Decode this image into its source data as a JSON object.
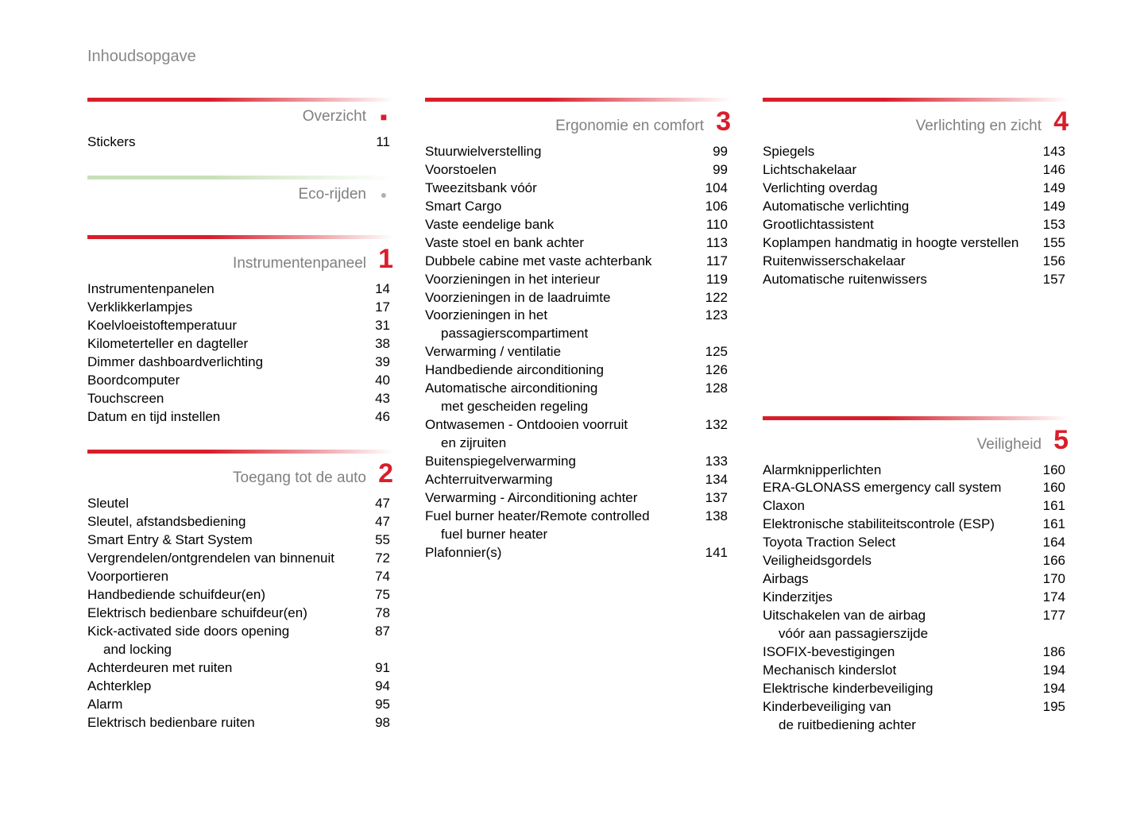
{
  "page_title": "Inhoudsopgave",
  "colors": {
    "accent_red": "#d81e2a",
    "title_gray": "#808080",
    "header_gray": "#888888",
    "text_black": "#000000",
    "green_bar": "#c8e0b8"
  },
  "columns": [
    {
      "sections": [
        {
          "bar_style": "red",
          "title": "Overzicht",
          "marker": "red-dot",
          "number": "",
          "items": [
            {
              "label": "Stickers",
              "page": "11"
            }
          ]
        },
        {
          "bar_style": "green",
          "title": "Eco-rijden",
          "marker": "gray-dot",
          "number": "",
          "items": []
        },
        {
          "bar_style": "red",
          "title": "Instrumentenpaneel",
          "marker": "number",
          "number": "1",
          "items": [
            {
              "label": "Instrumentenpanelen",
              "page": "14"
            },
            {
              "label": "Verklikkerlampjes",
              "page": "17"
            },
            {
              "label": "Koelvloeistoftemperatuur",
              "page": "31"
            },
            {
              "label": "Kilometerteller en dagteller",
              "page": "38"
            },
            {
              "label": "Dimmer dashboardverlichting",
              "page": "39"
            },
            {
              "label": "Boordcomputer",
              "page": "40"
            },
            {
              "label": "Touchscreen",
              "page": "43"
            },
            {
              "label": "Datum en tijd instellen",
              "page": "46"
            }
          ]
        },
        {
          "bar_style": "red",
          "title": "Toegang tot de auto",
          "marker": "number",
          "number": "2",
          "items": [
            {
              "label": "Sleutel",
              "page": "47"
            },
            {
              "label": "Sleutel, afstandsbediening",
              "page": "47"
            },
            {
              "label": "Smart Entry & Start System",
              "page": "55"
            },
            {
              "label": "Vergrendelen/ontgrendelen van binnenuit",
              "page": "72"
            },
            {
              "label": "Voorportieren",
              "page": "74"
            },
            {
              "label": "Handbediende schuifdeur(en)",
              "page": "75"
            },
            {
              "label": "Elektrisch bedienbare schuifdeur(en)",
              "page": "78"
            },
            {
              "label": "Kick-activated side doors opening",
              "label2": "and locking",
              "page": "87"
            },
            {
              "label": "Achterdeuren met ruiten",
              "page": "91"
            },
            {
              "label": "Achterklep",
              "page": "94"
            },
            {
              "label": "Alarm",
              "page": "95"
            },
            {
              "label": "Elektrisch bedienbare ruiten",
              "page": "98"
            }
          ]
        }
      ]
    },
    {
      "sections": [
        {
          "bar_style": "red",
          "title": "Ergonomie en comfort",
          "marker": "number",
          "number": "3",
          "items": [
            {
              "label": "Stuurwielverstelling",
              "page": "99"
            },
            {
              "label": "Voorstoelen",
              "page": "99"
            },
            {
              "label": "Tweezitsbank vóór",
              "page": "104"
            },
            {
              "label": "Smart Cargo",
              "page": "106"
            },
            {
              "label": "Vaste eendelige bank",
              "page": "110"
            },
            {
              "label": "Vaste stoel en bank achter",
              "page": "113"
            },
            {
              "label": "Dubbele cabine met vaste achterbank",
              "page": "117"
            },
            {
              "label": "Voorzieningen in het interieur",
              "page": "119"
            },
            {
              "label": "Voorzieningen in de laadruimte",
              "page": "122"
            },
            {
              "label": "Voorzieningen in het",
              "label2": "passagierscompartiment",
              "page": "123"
            },
            {
              "label": "Verwarming / ventilatie",
              "page": "125"
            },
            {
              "label": "Handbediende airconditioning",
              "page": "126"
            },
            {
              "label": "Automatische airconditioning",
              "label2": "met gescheiden regeling",
              "page": "128"
            },
            {
              "label": "Ontwasemen - Ontdooien voorruit",
              "label2": "en zijruiten",
              "page": "132"
            },
            {
              "label": "Buitenspiegelverwarming",
              "page": "133"
            },
            {
              "label": "Achterruitverwarming",
              "page": "134"
            },
            {
              "label": "Verwarming - Airconditioning achter",
              "page": "137"
            },
            {
              "label": "Fuel burner heater/Remote controlled",
              "label2": "fuel burner heater",
              "page": "138"
            },
            {
              "label": "Plafonnier(s)",
              "page": "141"
            }
          ]
        }
      ]
    },
    {
      "sections": [
        {
          "bar_style": "red",
          "title": "Verlichting en zicht",
          "marker": "number",
          "number": "4",
          "items": [
            {
              "label": "Spiegels",
              "page": "143"
            },
            {
              "label": "Lichtschakelaar",
              "page": "146"
            },
            {
              "label": "Verlichting overdag",
              "page": "149"
            },
            {
              "label": "Automatische verlichting",
              "page": "149"
            },
            {
              "label": "Grootlichtassistent",
              "page": "153"
            },
            {
              "label": "Koplampen handmatig in hoogte verstellen",
              "page": "155"
            },
            {
              "label": "Ruitenwisserschakelaar",
              "page": "156"
            },
            {
              "label": "Automatische ruitenwissers",
              "page": "157"
            }
          ]
        },
        {
          "bar_style": "red",
          "title": "Veiligheid",
          "marker": "number",
          "number": "5",
          "spacer_before": true,
          "items": [
            {
              "label": "Alarmknipperlichten",
              "page": "160"
            },
            {
              "label": "ERA-GLONASS emergency call system",
              "page": "160"
            },
            {
              "label": "Claxon",
              "page": "161"
            },
            {
              "label": "Elektronische stabiliteitscontrole (ESP)",
              "page": "161"
            },
            {
              "label": "Toyota Traction Select",
              "page": "164"
            },
            {
              "label": "Veiligheidsgordels",
              "page": "166"
            },
            {
              "label": "Airbags",
              "page": "170"
            },
            {
              "label": "Kinderzitjes",
              "page": "174"
            },
            {
              "label": "Uitschakelen van de airbag",
              "label2": "vóór aan passagierszijde",
              "page": "177"
            },
            {
              "label": "ISOFIX-bevestigingen",
              "page": "186"
            },
            {
              "label": "Mechanisch kinderslot",
              "page": "194"
            },
            {
              "label": "Elektrische kinderbeveiliging",
              "page": "194"
            },
            {
              "label": "Kinderbeveiliging van",
              "label2": "de ruitbediening achter",
              "page": "195"
            }
          ]
        }
      ]
    }
  ]
}
